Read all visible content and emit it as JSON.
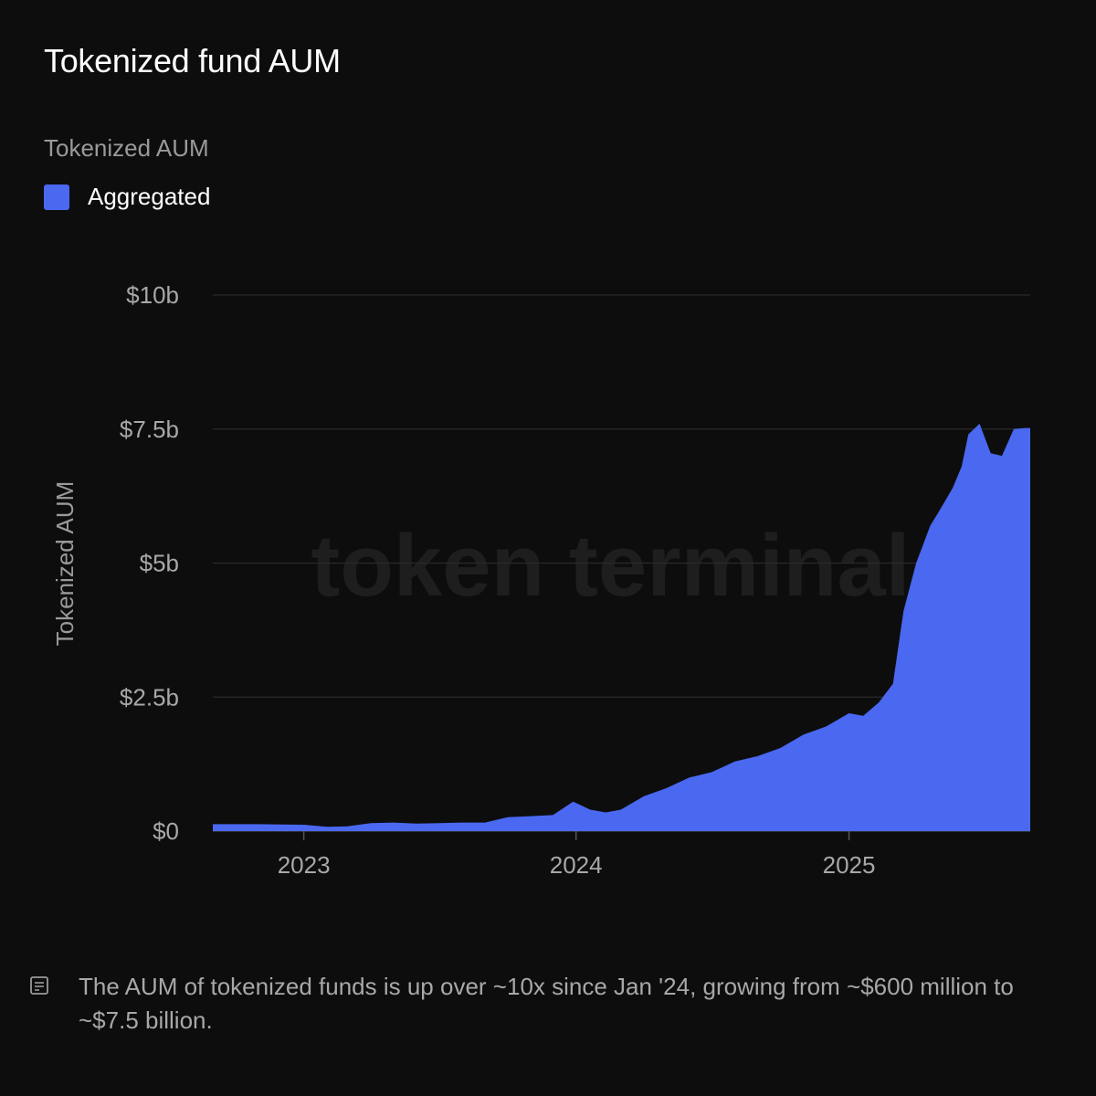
{
  "title": "Tokenized fund AUM",
  "legend": {
    "title": "Tokenized AUM",
    "items": [
      {
        "label": "Aggregated",
        "color": "#4a68f0"
      }
    ]
  },
  "watermark": "token terminal_",
  "note": {
    "icon": "note-icon",
    "text": "The AUM of tokenized funds is up over ~10x since Jan '24, growing from ~$600 million to ~$7.5 billion."
  },
  "chart_data": {
    "type": "area",
    "title": "Tokenized fund AUM",
    "xlabel": "",
    "ylabel": "Tokenized AUM",
    "y_unit": "$b",
    "ylim": [
      0,
      10
    ],
    "yticks": [
      0,
      2.5,
      5,
      7.5,
      10
    ],
    "ytick_labels": [
      "$0",
      "$2.5b",
      "$5b",
      "$7.5b",
      "$10b"
    ],
    "xlim": [
      "2022-09-01",
      "2025-09-01"
    ],
    "xticks": [
      "2023-01-01",
      "2024-01-01",
      "2025-01-01"
    ],
    "xtick_labels": [
      "2023",
      "2024",
      "2025"
    ],
    "grid": true,
    "legend_position": "top-left",
    "series": [
      {
        "name": "Aggregated",
        "color": "#4a68f0",
        "x": [
          "2022-09-01",
          "2022-11-01",
          "2023-01-01",
          "2023-02-01",
          "2023-03-01",
          "2023-04-01",
          "2023-05-01",
          "2023-06-01",
          "2023-07-01",
          "2023-08-01",
          "2023-09-01",
          "2023-10-01",
          "2023-11-01",
          "2023-12-01",
          "2023-12-28",
          "2024-01-05",
          "2024-01-20",
          "2024-02-10",
          "2024-03-01",
          "2024-04-01",
          "2024-05-01",
          "2024-06-01",
          "2024-07-01",
          "2024-08-01",
          "2024-09-01",
          "2024-10-01",
          "2024-11-01",
          "2024-12-01",
          "2025-01-01",
          "2025-01-20",
          "2025-02-10",
          "2025-03-01",
          "2025-03-15",
          "2025-04-01",
          "2025-04-20",
          "2025-05-01",
          "2025-05-20",
          "2025-06-01",
          "2025-06-10",
          "2025-06-25",
          "2025-07-10",
          "2025-07-25",
          "2025-08-10",
          "2025-08-25"
        ],
        "values": [
          0.13,
          0.13,
          0.12,
          0.08,
          0.09,
          0.15,
          0.16,
          0.14,
          0.15,
          0.16,
          0.16,
          0.26,
          0.28,
          0.3,
          0.55,
          0.5,
          0.4,
          0.35,
          0.4,
          0.65,
          0.8,
          1.0,
          1.1,
          1.3,
          1.4,
          1.55,
          1.8,
          1.95,
          2.2,
          2.15,
          2.4,
          2.75,
          4.1,
          5.0,
          5.7,
          5.95,
          6.4,
          6.8,
          7.4,
          7.6,
          7.05,
          7.0,
          7.5,
          7.52
        ]
      }
    ]
  }
}
